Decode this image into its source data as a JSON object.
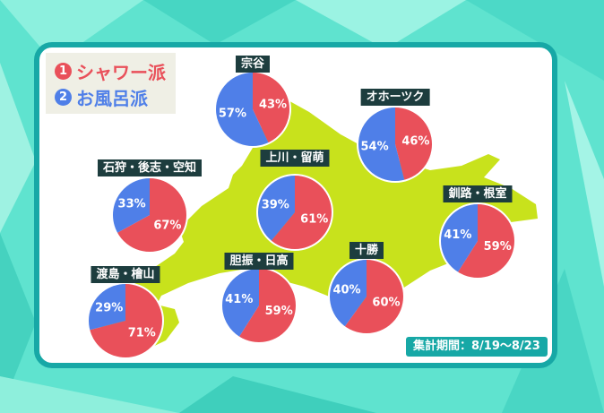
{
  "legend": {
    "shower": {
      "num": "1",
      "label": "シャワー派",
      "color": "#e9505a"
    },
    "bath": {
      "num": "2",
      "label": "お風呂派",
      "color": "#4f7fe8"
    }
  },
  "period": "集計期間：8/19〜8/23",
  "chart_data": {
    "type": "pie",
    "series_names": [
      "シャワー派",
      "お風呂派"
    ],
    "colors": {
      "shower": "#e9505a",
      "bath": "#4f7fe8"
    },
    "regions": [
      {
        "name": "宗谷",
        "shower": 43,
        "bath": 57,
        "shower_label": "43%",
        "bath_label": "57%"
      },
      {
        "name": "オホーツク",
        "shower": 46,
        "bath": 54,
        "shower_label": "46%",
        "bath_label": "54%"
      },
      {
        "name": "石狩・後志・空知",
        "shower": 67,
        "bath": 33,
        "shower_label": "67%",
        "bath_label": "33%"
      },
      {
        "name": "上川・留萌",
        "shower": 61,
        "bath": 39,
        "shower_label": "61%",
        "bath_label": "39%"
      },
      {
        "name": "釧路・根室",
        "shower": 59,
        "bath": 41,
        "shower_label": "59%",
        "bath_label": "41%"
      },
      {
        "name": "十勝",
        "shower": 60,
        "bath": 40,
        "shower_label": "60%",
        "bath_label": "40%"
      },
      {
        "name": "胆振・日高",
        "shower": 59,
        "bath": 41,
        "shower_label": "59%",
        "bath_label": "41%"
      },
      {
        "name": "渡島・檜山",
        "shower": 71,
        "bath": 29,
        "shower_label": "71%",
        "bath_label": "29%"
      }
    ]
  }
}
